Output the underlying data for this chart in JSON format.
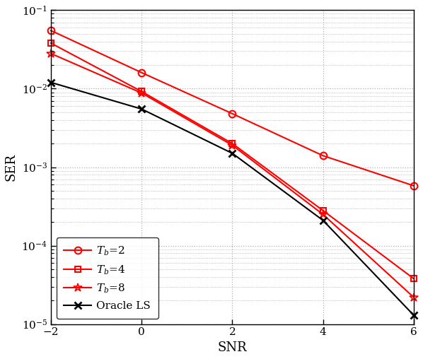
{
  "snr": [
    -2,
    0,
    2,
    4,
    6
  ],
  "Tb2": [
    0.055,
    0.016,
    0.0048,
    0.0014,
    0.00058
  ],
  "Tb4": [
    0.038,
    0.0092,
    0.002,
    0.00028,
    3.8e-05
  ],
  "Tb8": [
    0.028,
    0.0088,
    0.0019,
    0.00025,
    2.2e-05
  ],
  "oracle": [
    0.012,
    0.0055,
    0.0015,
    0.00021,
    1.3e-05
  ],
  "xlabel": "SNR",
  "ylabel": "SER",
  "ylim": [
    1e-05,
    0.1
  ],
  "xlim": [
    -2,
    6
  ],
  "xticks": [
    -2,
    0,
    2,
    4,
    6
  ],
  "line_color_red": "#FF0000",
  "line_color_black": "#000000",
  "legend_labels": [
    "$T_b$=2",
    "$T_b$=4",
    "$T_b$=8",
    "Oracle LS"
  ],
  "grid_color": "#B0B0B0",
  "bg_color": "#FFFFFF"
}
